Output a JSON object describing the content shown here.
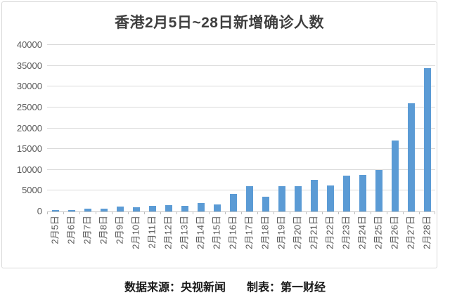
{
  "chart": {
    "bar_color": "#5b9bd5",
    "gridline_color": "#d9d9d9",
    "axis_line_color": "#c6c6c6",
    "tick_color": "#bdbdbd",
    "label_color": "#595959",
    "title_color": "#3f3f3f",
    "frame_border_color": "#d8d8d8",
    "background_color": "#ffffff"
  },
  "chart_data": {
    "type": "bar",
    "title": "香港2月5日~28日新增确诊人数",
    "xlabel": "",
    "ylabel": "",
    "categories": [
      "2月5日",
      "2月6日",
      "2月7日",
      "2月8日",
      "2月9日",
      "2月10日",
      "2月11日",
      "2月12日",
      "2月13日",
      "2月14日",
      "2月15日",
      "2月16日",
      "2月17日",
      "2月18日",
      "2月19日",
      "2月20日",
      "2月21日",
      "2月22日",
      "2月23日",
      "2月24日",
      "2月25日",
      "2月26日",
      "2月27日",
      "2月28日"
    ],
    "values": [
      351,
      342,
      614,
      625,
      1161,
      986,
      1325,
      1514,
      1347,
      2071,
      1619,
      4285,
      6116,
      3629,
      6063,
      6067,
      7533,
      6211,
      8674,
      8798,
      10010,
      17063,
      26026,
      34466
    ],
    "ylim": [
      0,
      40000
    ],
    "ytick_step": 5000,
    "yticks": [
      0,
      5000,
      10000,
      15000,
      20000,
      25000,
      30000,
      35000,
      40000
    ],
    "grid": true,
    "legend": false,
    "x_tick_label_rotation": -90
  },
  "caption": {
    "source": "数据来源：央视新闻",
    "maker": "制表：第一财经"
  }
}
